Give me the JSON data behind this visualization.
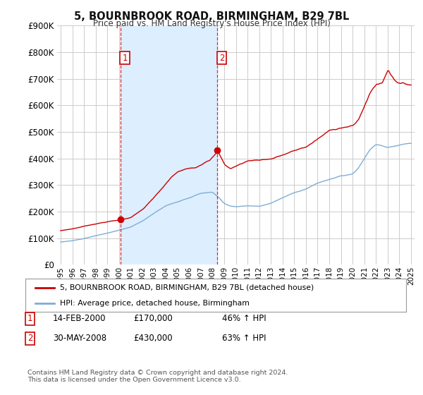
{
  "title": "5, BOURNBROOK ROAD, BIRMINGHAM, B29 7BL",
  "subtitle": "Price paid vs. HM Land Registry's House Price Index (HPI)",
  "background_color": "#ffffff",
  "plot_bg_color": "#ffffff",
  "grid_color": "#cccccc",
  "shade_color": "#ddeeff",
  "red_color": "#cc0000",
  "blue_color": "#7eadd4",
  "ylim": [
    0,
    900000
  ],
  "yticks": [
    0,
    100000,
    200000,
    300000,
    400000,
    500000,
    600000,
    700000,
    800000,
    900000
  ],
  "xlim_start": 1994.7,
  "xlim_end": 2025.3,
  "purchase1_x": 2000.12,
  "purchase1_y": 170000,
  "purchase2_x": 2008.42,
  "purchase2_y": 430000,
  "legend_label_red": "5, BOURNBROOK ROAD, BIRMINGHAM, B29 7BL (detached house)",
  "legend_label_blue": "HPI: Average price, detached house, Birmingham",
  "note1_label": "1",
  "note1_date": "14-FEB-2000",
  "note1_price": "£170,000",
  "note1_hpi": "46% ↑ HPI",
  "note2_label": "2",
  "note2_date": "30-MAY-2008",
  "note2_price": "£430,000",
  "note2_hpi": "63% ↑ HPI",
  "footer": "Contains HM Land Registry data © Crown copyright and database right 2024.\nThis data is licensed under the Open Government Licence v3.0."
}
